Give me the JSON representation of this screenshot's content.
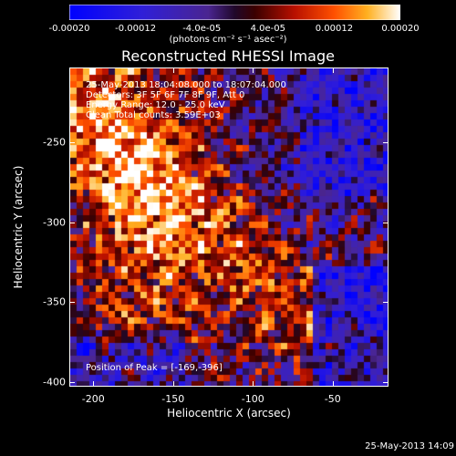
{
  "colorbar": {
    "tick_labels": [
      "-0.00020",
      "-0.00012",
      "-4.0e-05",
      "4.0e-05",
      "0.00012",
      "0.00020"
    ],
    "tick_values": [
      -0.0002,
      -0.00012,
      -4e-05,
      4e-05,
      0.00012,
      0.0002
    ],
    "unit_label": "(photons cm⁻² s⁻¹ asec⁻²)",
    "range": [
      -0.0002,
      0.0002
    ]
  },
  "annotations": {
    "time_range": "25-May-2013 18:04:08.000 to 18:07:04.000",
    "detectors": "Detectors: 3F 5F 6F 7F 8F 9F, Att 0",
    "energy_range": "Energy Range: 12.0 - 25.0 keV",
    "clean_counts": "Clean     Total counts: 3.59E+03",
    "peak_position": "Position of Peak = [-169,-396]"
  },
  "footer": "25-May-2013 14:09",
  "chart_data": {
    "type": "heatmap",
    "title": "Reconstructed RHESSI Image",
    "xlabel": "Heliocentric X (arcsec)",
    "ylabel": "Heliocentric Y (arcsec)",
    "xlim": [
      -215,
      -15
    ],
    "ylim": [
      -403,
      -203
    ],
    "x_ticks": [
      -200,
      -150,
      -100,
      -50
    ],
    "y_ticks": [
      -250,
      -300,
      -350,
      -400
    ],
    "x_tick_labels": [
      "-200",
      "-150",
      "-100",
      "-50"
    ],
    "y_tick_labels": [
      "-250",
      "-300",
      "-350",
      "-400"
    ],
    "colormap": "red-temperature with blue negatives",
    "value_range": [
      -0.0002,
      0.0002
    ],
    "peak": [
      -169,
      -396
    ]
  }
}
